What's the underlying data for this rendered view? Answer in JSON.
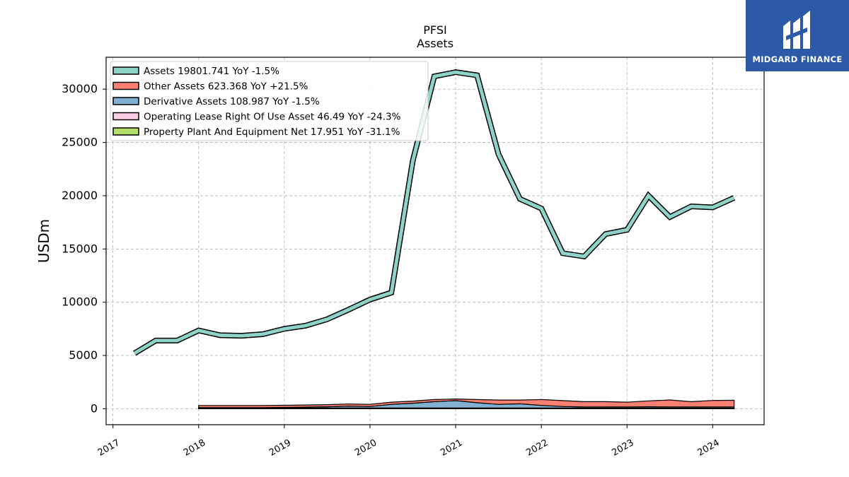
{
  "logo": {
    "name": "MIDGARD FINANCE",
    "bg_color": "#2b5aa8",
    "icon": "midgard-logo-icon"
  },
  "chart_data": {
    "type": "area",
    "title": "PFSI",
    "subtitle": "Assets",
    "ylabel": "USDm",
    "xlabel": "",
    "ylim": [
      -1500,
      33000
    ],
    "xlim": [
      2016.92,
      2024.6
    ],
    "yticks": [
      0,
      5000,
      10000,
      15000,
      20000,
      25000,
      30000
    ],
    "xticks": [
      2017,
      2018,
      2019,
      2020,
      2021,
      2022,
      2023,
      2024
    ],
    "grid": true,
    "legend_position": "top-left",
    "line_series": {
      "name": "Assets",
      "legend": "Assets  19801.741 YoY -1.5%",
      "color": "#8dd3c7",
      "x": [
        2017.25,
        2017.5,
        2017.75,
        2018.0,
        2018.25,
        2018.5,
        2018.75,
        2019.0,
        2019.25,
        2019.5,
        2019.75,
        2020.0,
        2020.25,
        2020.5,
        2020.75,
        2021.0,
        2021.25,
        2021.5,
        2021.75,
        2022.0,
        2022.25,
        2022.5,
        2022.75,
        2023.0,
        2023.25,
        2023.5,
        2023.75,
        2024.0,
        2024.25
      ],
      "values": [
        5200,
        6400,
        6400,
        7350,
        6900,
        6850,
        7000,
        7500,
        7800,
        8400,
        9300,
        10250,
        10900,
        23300,
        31200,
        31600,
        31300,
        23900,
        19700,
        18800,
        14600,
        14300,
        16400,
        16800,
        20000,
        18000,
        19000,
        18900,
        19802
      ]
    },
    "stacked_series": [
      {
        "name": "Property Plant And Equipment Net",
        "legend": "Property Plant And Equipment Net  17.951 YoY -31.1%",
        "color": "#b3de69",
        "x": [
          2018.0,
          2024.25
        ],
        "values": [
          18,
          18
        ]
      },
      {
        "name": "Operating Lease Right Of Use Asset",
        "legend": "Operating Lease Right Of Use Asset  46.49 YoY -24.3%",
        "color": "#fccde5",
        "x": [
          2018.0,
          2024.25
        ],
        "values": [
          46,
          46
        ]
      },
      {
        "name": "Derivative Assets",
        "legend": "Derivative Assets  108.987 YoY -1.5%",
        "color": "#80b1d3",
        "x": [
          2018.0,
          2018.25,
          2018.5,
          2018.75,
          2019.0,
          2019.25,
          2019.5,
          2019.75,
          2020.0,
          2020.25,
          2020.5,
          2020.75,
          2021.0,
          2021.25,
          2021.5,
          2021.75,
          2022.0,
          2022.25,
          2022.5,
          2022.75,
          2023.0,
          2023.25,
          2023.5,
          2023.75,
          2024.0,
          2024.25
        ],
        "values": [
          40,
          40,
          40,
          40,
          60,
          90,
          120,
          180,
          150,
          350,
          450,
          600,
          700,
          500,
          350,
          400,
          250,
          150,
          100,
          100,
          100,
          120,
          110,
          100,
          110,
          109
        ]
      },
      {
        "name": "Other Assets",
        "legend": "Other Assets  623.368 YoY +21.5%",
        "color": "#fb8072",
        "x": [
          2018.0,
          2018.25,
          2018.5,
          2018.75,
          2019.0,
          2019.25,
          2019.5,
          2019.75,
          2020.0,
          2020.25,
          2020.5,
          2020.75,
          2021.0,
          2021.25,
          2021.5,
          2021.75,
          2022.0,
          2022.25,
          2022.5,
          2022.75,
          2023.0,
          2023.25,
          2023.5,
          2023.75,
          2024.0,
          2024.25
        ],
        "values": [
          200,
          200,
          200,
          200,
          200,
          200,
          200,
          200,
          200,
          200,
          200,
          200,
          150,
          300,
          400,
          350,
          550,
          550,
          500,
          500,
          450,
          550,
          650,
          500,
          600,
          623
        ]
      }
    ],
    "legend_order": [
      "Assets",
      "Other Assets",
      "Derivative Assets",
      "Operating Lease Right Of Use Asset",
      "Property Plant And Equipment Net"
    ]
  }
}
